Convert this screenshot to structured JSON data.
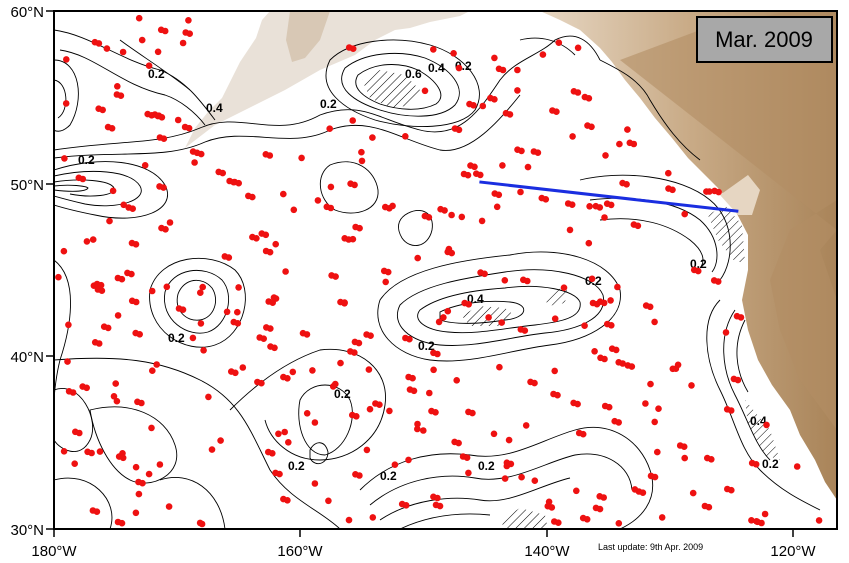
{
  "map": {
    "date_label": "Mar. 2009",
    "last_update": "Last update: 9th Apr. 2009",
    "lat_ticks": [
      "30°N",
      "40°N",
      "50°N",
      "60°N"
    ],
    "lon_ticks": [
      "180°W",
      "160°W",
      "140°W",
      "120°W"
    ],
    "extent": {
      "lon_min": -180,
      "lon_max": -116.5,
      "lat_min": 30,
      "lat_max": 60
    },
    "colors": {
      "float": "#ee1111",
      "section": "#1a2ee0",
      "land": "#c9ab87",
      "contour": "#000000",
      "box": "#a8a8a8"
    },
    "contour_labels": [
      "0.2",
      "0.2",
      "0.4",
      "0.6",
      "0.2",
      "0.4",
      "0.2",
      "0.2",
      "0.2",
      "0.2",
      "0.4",
      "0.2",
      "0.2",
      "0.2",
      "0.2",
      "0.2",
      "0.4",
      "0.2"
    ],
    "section_line": {
      "start": {
        "lon": -145.5,
        "lat": 50.1
      },
      "end": {
        "lon": -124.5,
        "lat": 48.4
      }
    }
  }
}
